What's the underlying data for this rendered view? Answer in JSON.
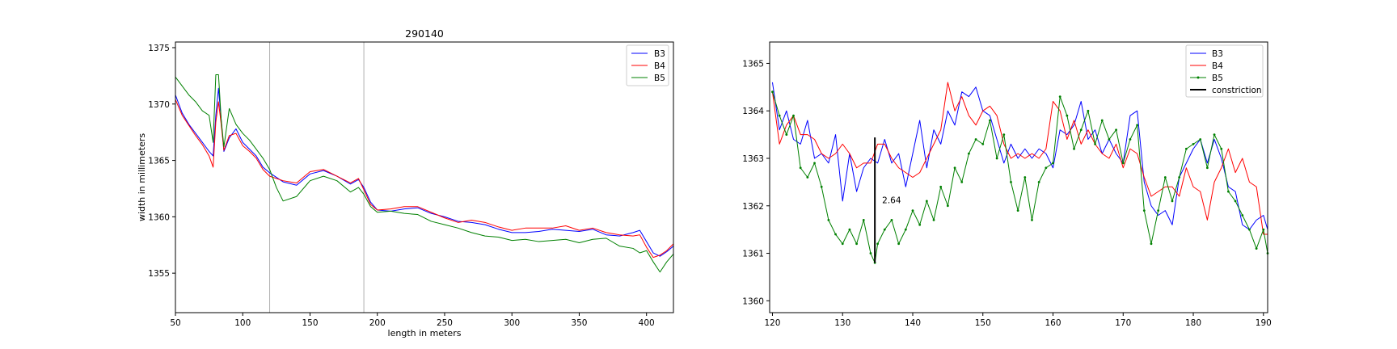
{
  "colors": {
    "B3": "#0000ff",
    "B4": "#ff0000",
    "B5": "#008000",
    "constriction": "#000000",
    "vline": "#b0b0b0"
  },
  "chart_data": [
    {
      "type": "line",
      "title": "290140",
      "xlabel": "length in meters",
      "ylabel": "width in millimeters",
      "xlim": [
        50,
        420
      ],
      "ylim": [
        1351.5,
        1375.5
      ],
      "xticks": [
        "50",
        "100",
        "150",
        "200",
        "250",
        "300",
        "350",
        "400"
      ],
      "yticks": [
        "1355",
        "1360",
        "1365",
        "1370",
        "1375"
      ],
      "legend_position": "top-right",
      "vertical_lines": [
        120,
        190
      ],
      "series": [
        {
          "name": "B3",
          "color_key": "B3",
          "x": [
            50,
            55,
            60,
            65,
            70,
            75,
            78,
            80,
            82,
            84,
            86,
            90,
            95,
            100,
            105,
            110,
            115,
            120,
            130,
            140,
            150,
            160,
            170,
            180,
            186,
            190,
            195,
            200,
            210,
            220,
            230,
            240,
            250,
            260,
            270,
            280,
            290,
            300,
            310,
            320,
            330,
            340,
            350,
            360,
            370,
            380,
            390,
            395,
            400,
            405,
            410,
            415,
            420
          ],
          "y": [
            1370.8,
            1369.2,
            1368.2,
            1367.4,
            1366.6,
            1365.8,
            1365.4,
            1369.0,
            1371.4,
            1368.6,
            1365.8,
            1367.0,
            1367.8,
            1366.6,
            1366.0,
            1365.4,
            1364.4,
            1363.9,
            1363.1,
            1362.8,
            1363.8,
            1364.1,
            1363.6,
            1362.9,
            1363.3,
            1362.6,
            1361.3,
            1360.6,
            1360.5,
            1360.7,
            1360.8,
            1360.3,
            1360.0,
            1359.6,
            1359.5,
            1359.3,
            1358.9,
            1358.6,
            1358.6,
            1358.7,
            1358.9,
            1358.8,
            1358.7,
            1358.9,
            1358.4,
            1358.3,
            1358.6,
            1358.8,
            1357.8,
            1356.8,
            1356.5,
            1356.9,
            1357.4
          ]
        },
        {
          "name": "B4",
          "color_key": "B4",
          "x": [
            50,
            55,
            60,
            65,
            70,
            75,
            78,
            80,
            82,
            84,
            86,
            90,
            95,
            100,
            105,
            110,
            115,
            120,
            130,
            140,
            150,
            160,
            170,
            180,
            186,
            190,
            195,
            200,
            210,
            220,
            230,
            240,
            250,
            260,
            270,
            280,
            290,
            300,
            310,
            320,
            330,
            340,
            350,
            360,
            370,
            380,
            390,
            395,
            400,
            405,
            410,
            415,
            420
          ],
          "y": [
            1370.4,
            1369.0,
            1368.1,
            1367.2,
            1366.4,
            1365.4,
            1364.4,
            1368.4,
            1370.2,
            1368.2,
            1365.9,
            1367.2,
            1367.4,
            1366.3,
            1365.8,
            1365.2,
            1364.2,
            1363.6,
            1363.2,
            1363.0,
            1364.0,
            1364.2,
            1363.6,
            1363.0,
            1363.4,
            1362.4,
            1361.1,
            1360.6,
            1360.7,
            1360.9,
            1360.9,
            1360.4,
            1359.9,
            1359.5,
            1359.7,
            1359.5,
            1359.1,
            1358.8,
            1359.0,
            1359.0,
            1359.0,
            1359.2,
            1358.8,
            1359.0,
            1358.6,
            1358.4,
            1358.3,
            1358.4,
            1357.3,
            1356.4,
            1356.6,
            1357.0,
            1357.6
          ]
        },
        {
          "name": "B5",
          "color_key": "B5",
          "x": [
            50,
            55,
            60,
            65,
            70,
            75,
            78,
            80,
            82,
            84,
            86,
            90,
            95,
            100,
            105,
            110,
            115,
            120,
            125,
            130,
            140,
            150,
            160,
            170,
            180,
            186,
            190,
            195,
            200,
            210,
            220,
            230,
            240,
            250,
            260,
            270,
            280,
            290,
            300,
            310,
            320,
            330,
            340,
            350,
            360,
            370,
            380,
            390,
            395,
            400,
            405,
            410,
            415,
            420
          ],
          "y": [
            1372.4,
            1371.6,
            1370.8,
            1370.2,
            1369.4,
            1369.0,
            1366.6,
            1372.6,
            1372.6,
            1368.6,
            1366.2,
            1369.6,
            1368.2,
            1367.4,
            1366.8,
            1366.0,
            1365.2,
            1364.2,
            1362.6,
            1361.4,
            1361.8,
            1363.2,
            1363.6,
            1363.2,
            1362.2,
            1362.6,
            1362.0,
            1360.9,
            1360.4,
            1360.5,
            1360.3,
            1360.2,
            1359.6,
            1359.3,
            1359.0,
            1358.6,
            1358.3,
            1358.2,
            1357.9,
            1358.0,
            1357.8,
            1357.9,
            1358.0,
            1357.7,
            1358.0,
            1358.1,
            1357.4,
            1357.2,
            1356.8,
            1357.0,
            1356.0,
            1355.1,
            1356.0,
            1356.7
          ]
        }
      ]
    },
    {
      "type": "line",
      "title": "",
      "xlabel": "",
      "ylabel": "",
      "xlim": [
        119.6,
        190.6
      ],
      "ylim": [
        1359.75,
        1365.45
      ],
      "xticks": [
        "120",
        "130",
        "140",
        "150",
        "160",
        "170",
        "180",
        "190"
      ],
      "yticks": [
        "1360",
        "1361",
        "1362",
        "1363",
        "1364",
        "1365"
      ],
      "legend_position": "top-right",
      "series": [
        {
          "name": "B3",
          "color_key": "B3",
          "markers": false,
          "x": [
            120,
            121,
            122,
            123,
            124,
            125,
            126,
            127,
            128,
            129,
            130,
            131,
            132,
            133,
            134,
            135,
            136,
            137,
            138,
            139,
            140,
            141,
            142,
            143,
            144,
            145,
            146,
            147,
            148,
            149,
            150,
            151,
            152,
            153,
            154,
            155,
            156,
            157,
            158,
            159,
            160,
            161,
            162,
            163,
            164,
            165,
            166,
            167,
            168,
            169,
            170,
            171,
            172,
            173,
            174,
            175,
            176,
            177,
            178,
            179,
            180,
            181,
            182,
            183,
            184,
            185,
            186,
            187,
            188,
            189,
            190,
            190.6
          ],
          "y": [
            1364.6,
            1363.6,
            1364.0,
            1363.4,
            1363.3,
            1363.8,
            1363.0,
            1363.1,
            1362.9,
            1363.5,
            1362.1,
            1363.1,
            1362.3,
            1362.8,
            1363.0,
            1362.9,
            1363.4,
            1362.9,
            1363.1,
            1362.4,
            1363.1,
            1363.8,
            1362.8,
            1363.6,
            1363.3,
            1364.0,
            1363.7,
            1364.4,
            1364.3,
            1364.5,
            1364.0,
            1363.9,
            1363.4,
            1362.9,
            1363.3,
            1363.0,
            1363.2,
            1363.0,
            1363.2,
            1363.1,
            1362.8,
            1363.6,
            1363.5,
            1363.7,
            1364.2,
            1363.4,
            1363.6,
            1363.1,
            1363.4,
            1363.1,
            1362.9,
            1363.9,
            1364.0,
            1362.5,
            1362.0,
            1361.8,
            1361.9,
            1361.6,
            1362.6,
            1362.9,
            1363.2,
            1363.4,
            1362.9,
            1363.4,
            1363.0,
            1362.4,
            1362.3,
            1361.6,
            1361.5,
            1361.7,
            1361.8,
            1361.5
          ]
        },
        {
          "name": "B4",
          "color_key": "B4",
          "markers": false,
          "x": [
            120,
            121,
            122,
            123,
            124,
            125,
            126,
            127,
            128,
            129,
            130,
            131,
            132,
            133,
            134,
            135,
            136,
            137,
            138,
            139,
            140,
            141,
            142,
            143,
            144,
            145,
            146,
            147,
            148,
            149,
            150,
            151,
            152,
            153,
            154,
            155,
            156,
            157,
            158,
            159,
            160,
            161,
            162,
            163,
            164,
            165,
            166,
            167,
            168,
            169,
            170,
            171,
            172,
            173,
            174,
            175,
            176,
            177,
            178,
            179,
            180,
            181,
            182,
            183,
            184,
            185,
            186,
            187,
            188,
            189,
            190,
            190.6
          ],
          "y": [
            1364.4,
            1363.3,
            1363.7,
            1363.9,
            1363.5,
            1363.5,
            1363.4,
            1363.1,
            1363.0,
            1363.1,
            1363.3,
            1363.1,
            1362.8,
            1362.9,
            1362.9,
            1363.3,
            1363.3,
            1363.0,
            1362.8,
            1362.7,
            1362.6,
            1362.7,
            1363.0,
            1363.3,
            1363.6,
            1364.6,
            1364.0,
            1364.3,
            1363.9,
            1363.7,
            1364.0,
            1364.1,
            1363.9,
            1363.3,
            1363.0,
            1363.1,
            1363.0,
            1363.1,
            1363.0,
            1363.2,
            1364.2,
            1364.0,
            1363.4,
            1363.8,
            1363.3,
            1363.6,
            1363.3,
            1363.1,
            1363.0,
            1363.3,
            1362.8,
            1363.2,
            1363.1,
            1362.6,
            1362.2,
            1362.3,
            1362.4,
            1362.4,
            1362.2,
            1362.8,
            1362.4,
            1362.3,
            1361.7,
            1362.5,
            1362.8,
            1363.2,
            1362.7,
            1363.0,
            1362.5,
            1362.4,
            1361.4,
            1361.4
          ]
        },
        {
          "name": "B5",
          "color_key": "B5",
          "markers": true,
          "x": [
            120,
            121,
            122,
            123,
            124,
            125,
            126,
            127,
            128,
            129,
            130,
            131,
            132,
            133,
            134,
            134.6,
            135,
            136,
            137,
            138,
            139,
            140,
            141,
            142,
            143,
            144,
            145,
            146,
            147,
            148,
            149,
            150,
            151,
            152,
            153,
            154,
            155,
            156,
            157,
            158,
            159,
            160,
            161,
            162,
            163,
            164,
            165,
            166,
            167,
            168,
            169,
            170,
            171,
            172,
            173,
            174,
            175,
            176,
            177,
            178,
            179,
            180,
            181,
            182,
            183,
            184,
            185,
            186,
            187,
            188,
            189,
            190,
            190.6
          ],
          "y": [
            1364.4,
            1363.9,
            1363.5,
            1363.9,
            1362.8,
            1362.6,
            1362.9,
            1362.4,
            1361.7,
            1361.4,
            1361.2,
            1361.5,
            1361.2,
            1361.7,
            1361.0,
            1360.8,
            1361.2,
            1361.5,
            1361.7,
            1361.2,
            1361.5,
            1361.9,
            1361.6,
            1362.1,
            1361.7,
            1362.4,
            1362.0,
            1362.8,
            1362.5,
            1363.1,
            1363.4,
            1363.3,
            1363.8,
            1363.0,
            1363.5,
            1362.5,
            1361.9,
            1362.6,
            1361.7,
            1362.5,
            1362.8,
            1362.9,
            1364.3,
            1363.9,
            1363.2,
            1363.6,
            1364.0,
            1363.3,
            1363.8,
            1363.4,
            1363.6,
            1362.9,
            1363.4,
            1363.7,
            1361.9,
            1361.2,
            1361.9,
            1362.6,
            1362.1,
            1362.6,
            1363.2,
            1363.3,
            1363.4,
            1362.8,
            1363.5,
            1363.2,
            1362.3,
            1362.1,
            1361.8,
            1361.5,
            1361.1,
            1361.5,
            1361.0
          ]
        }
      ],
      "constriction": {
        "name": "constriction",
        "color_key": "constriction",
        "x": 134.6,
        "y_low": 1360.8,
        "y_high": 1363.44,
        "label": "2.64"
      }
    }
  ]
}
